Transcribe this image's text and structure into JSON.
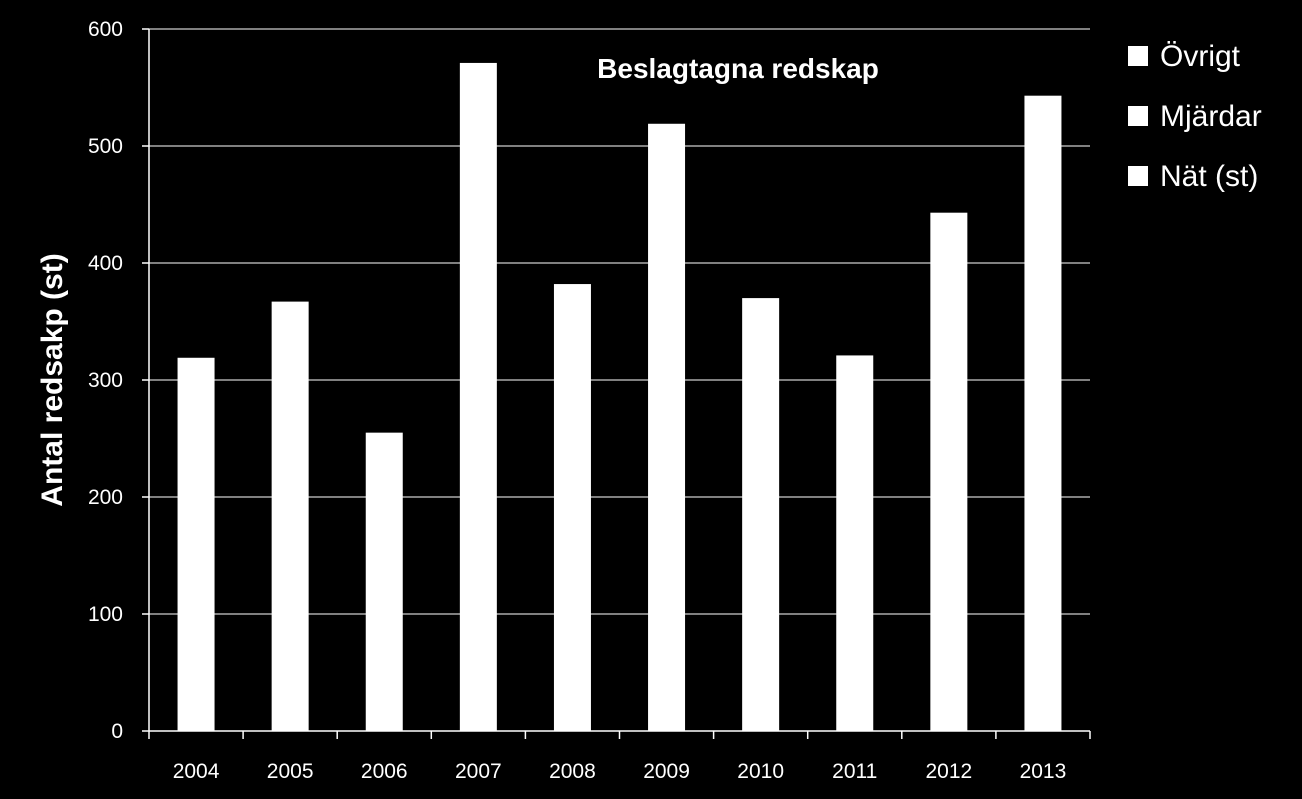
{
  "chart_data": {
    "type": "bar",
    "title": "Beslagtagna redskap",
    "xlabel": "",
    "ylabel": "Antal redsakp (st)",
    "ylim": [
      0,
      600
    ],
    "yticks": [
      0,
      100,
      200,
      300,
      400,
      500,
      600
    ],
    "grid": true,
    "legend_position": "top-right",
    "categories": [
      "2004",
      "2005",
      "2006",
      "2007",
      "2008",
      "2009",
      "2010",
      "2011",
      "2012",
      "2013"
    ],
    "series": [
      {
        "name": "Övrigt",
        "values": [
          0,
          0,
          0,
          0,
          0,
          0,
          0,
          0,
          0,
          0
        ]
      },
      {
        "name": "Mjärdar",
        "values": [
          0,
          0,
          0,
          0,
          0,
          0,
          0,
          0,
          0,
          0
        ]
      },
      {
        "name": "Nät (st)",
        "values": [
          319,
          367,
          255,
          571,
          382,
          519,
          370,
          321,
          443,
          543
        ]
      }
    ],
    "colors": {
      "background": "#000000",
      "bars": "#ffffff",
      "grid": "#ffffff",
      "text": "#ffffff"
    }
  }
}
